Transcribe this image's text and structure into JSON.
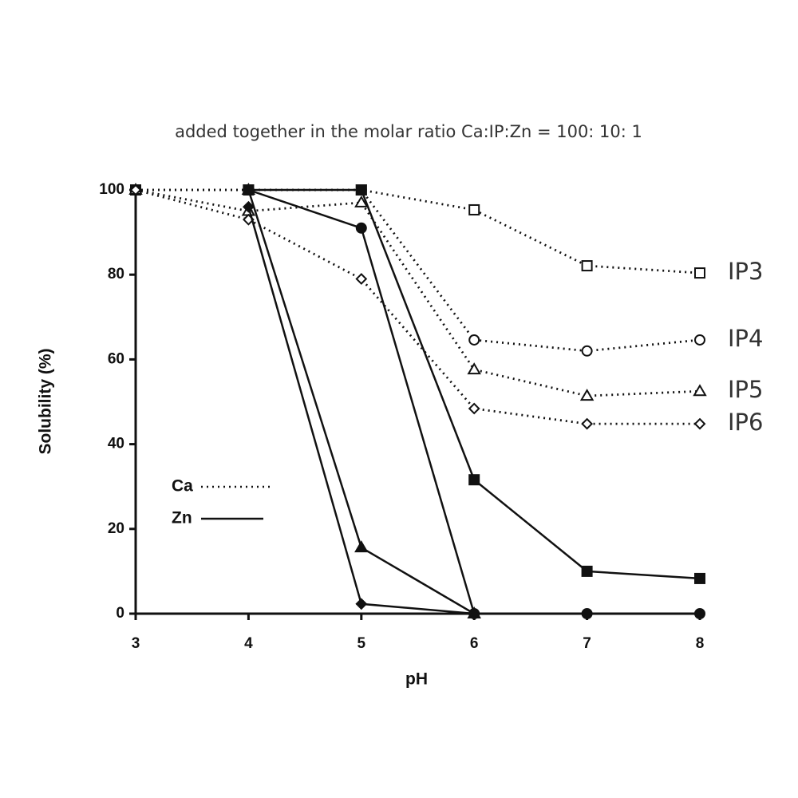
{
  "chart_data": {
    "type": "line",
    "title": "added together in the molar ratio Ca:IP:Zn = 100: 10: 1",
    "xlabel": "pH",
    "ylabel": "Solubility (%)",
    "x": [
      3,
      4,
      5,
      6,
      7,
      8
    ],
    "xlim": [
      3,
      8
    ],
    "xticks": [
      3,
      4,
      5,
      6,
      7,
      8
    ],
    "ylim": [
      0,
      100
    ],
    "yticks": [
      0,
      20,
      40,
      60,
      80,
      100
    ],
    "legend": [
      {
        "label": "Ca",
        "style": "dotted"
      },
      {
        "label": "Zn",
        "style": "solid"
      }
    ],
    "color": "#111111",
    "series": [
      {
        "name": "IP3",
        "marker": "square",
        "ca_values": [
          100,
          100,
          100,
          95.3,
          82.1,
          80.4
        ],
        "zn_values": [
          null,
          100,
          100,
          31.6,
          10,
          8.3
        ]
      },
      {
        "name": "IP4",
        "marker": "circle",
        "ca_values": [
          100,
          100,
          100,
          64.6,
          62,
          64.6
        ],
        "zn_values": [
          null,
          100,
          91,
          0,
          0,
          0
        ]
      },
      {
        "name": "IP5",
        "marker": "triangle",
        "ca_values": [
          100,
          95,
          97,
          57.6,
          51.4,
          52.5
        ],
        "zn_values": [
          null,
          100,
          15.6,
          0,
          null,
          null
        ]
      },
      {
        "name": "IP6",
        "marker": "diamond",
        "ca_values": [
          100,
          93,
          79,
          48.4,
          44.8,
          44.8
        ],
        "zn_values": [
          null,
          96,
          2.3,
          0,
          null,
          null
        ]
      }
    ]
  }
}
